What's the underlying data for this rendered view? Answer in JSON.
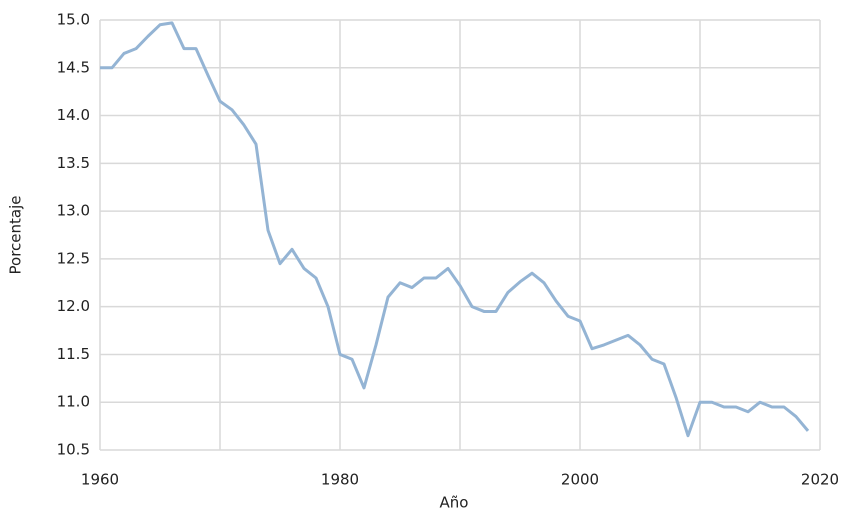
{
  "chart_data": {
    "type": "line",
    "xlabel": "Año",
    "ylabel": "Porcentaje",
    "x": [
      1960,
      1961,
      1962,
      1963,
      1964,
      1965,
      1966,
      1967,
      1968,
      1969,
      1970,
      1971,
      1972,
      1973,
      1974,
      1975,
      1976,
      1977,
      1978,
      1979,
      1980,
      1981,
      1982,
      1983,
      1984,
      1985,
      1986,
      1987,
      1988,
      1989,
      1990,
      1991,
      1992,
      1993,
      1994,
      1995,
      1996,
      1997,
      1998,
      1999,
      2000,
      2001,
      2002,
      2003,
      2004,
      2005,
      2006,
      2007,
      2008,
      2009,
      2010,
      2011,
      2012,
      2013,
      2014,
      2015,
      2016,
      2017,
      2018,
      2019
    ],
    "series": [
      {
        "color": "#94b4d4",
        "values": [
          14.5,
          14.5,
          14.65,
          14.7,
          14.83,
          14.95,
          14.97,
          14.7,
          14.7,
          14.42,
          14.15,
          14.06,
          13.9,
          13.7,
          12.8,
          12.45,
          12.6,
          12.4,
          12.3,
          12.0,
          11.5,
          11.45,
          11.15,
          11.6,
          12.1,
          12.25,
          12.2,
          12.3,
          12.3,
          12.4,
          12.22,
          12.0,
          11.95,
          11.95,
          12.15,
          12.26,
          12.35,
          12.25,
          12.06,
          11.9,
          11.85,
          11.56,
          11.6,
          11.65,
          11.7,
          11.6,
          11.45,
          11.4,
          11.05,
          10.65,
          11.0,
          11.0,
          10.95,
          10.95,
          10.9,
          11.0,
          10.95,
          10.95,
          10.85,
          10.7
        ]
      }
    ],
    "xlim": [
      1960,
      2020
    ],
    "xticks": [
      1960,
      1980,
      2000,
      2020
    ],
    "xgrid": [
      1970,
      1990,
      2010
    ],
    "ylim": [
      10.5,
      15
    ],
    "yticks": [
      {
        "value": 10.5,
        "label": "10.5"
      },
      {
        "value": 11,
        "label": "11.0"
      },
      11.5,
      {
        "value": 12,
        "label": "12.0"
      },
      12.5,
      {
        "value": 13,
        "label": "13.0"
      },
      13.5,
      {
        "value": 14,
        "label": "14.0"
      },
      14.5,
      {
        "value": 15,
        "label": "15.0"
      }
    ],
    "grid": true
  }
}
